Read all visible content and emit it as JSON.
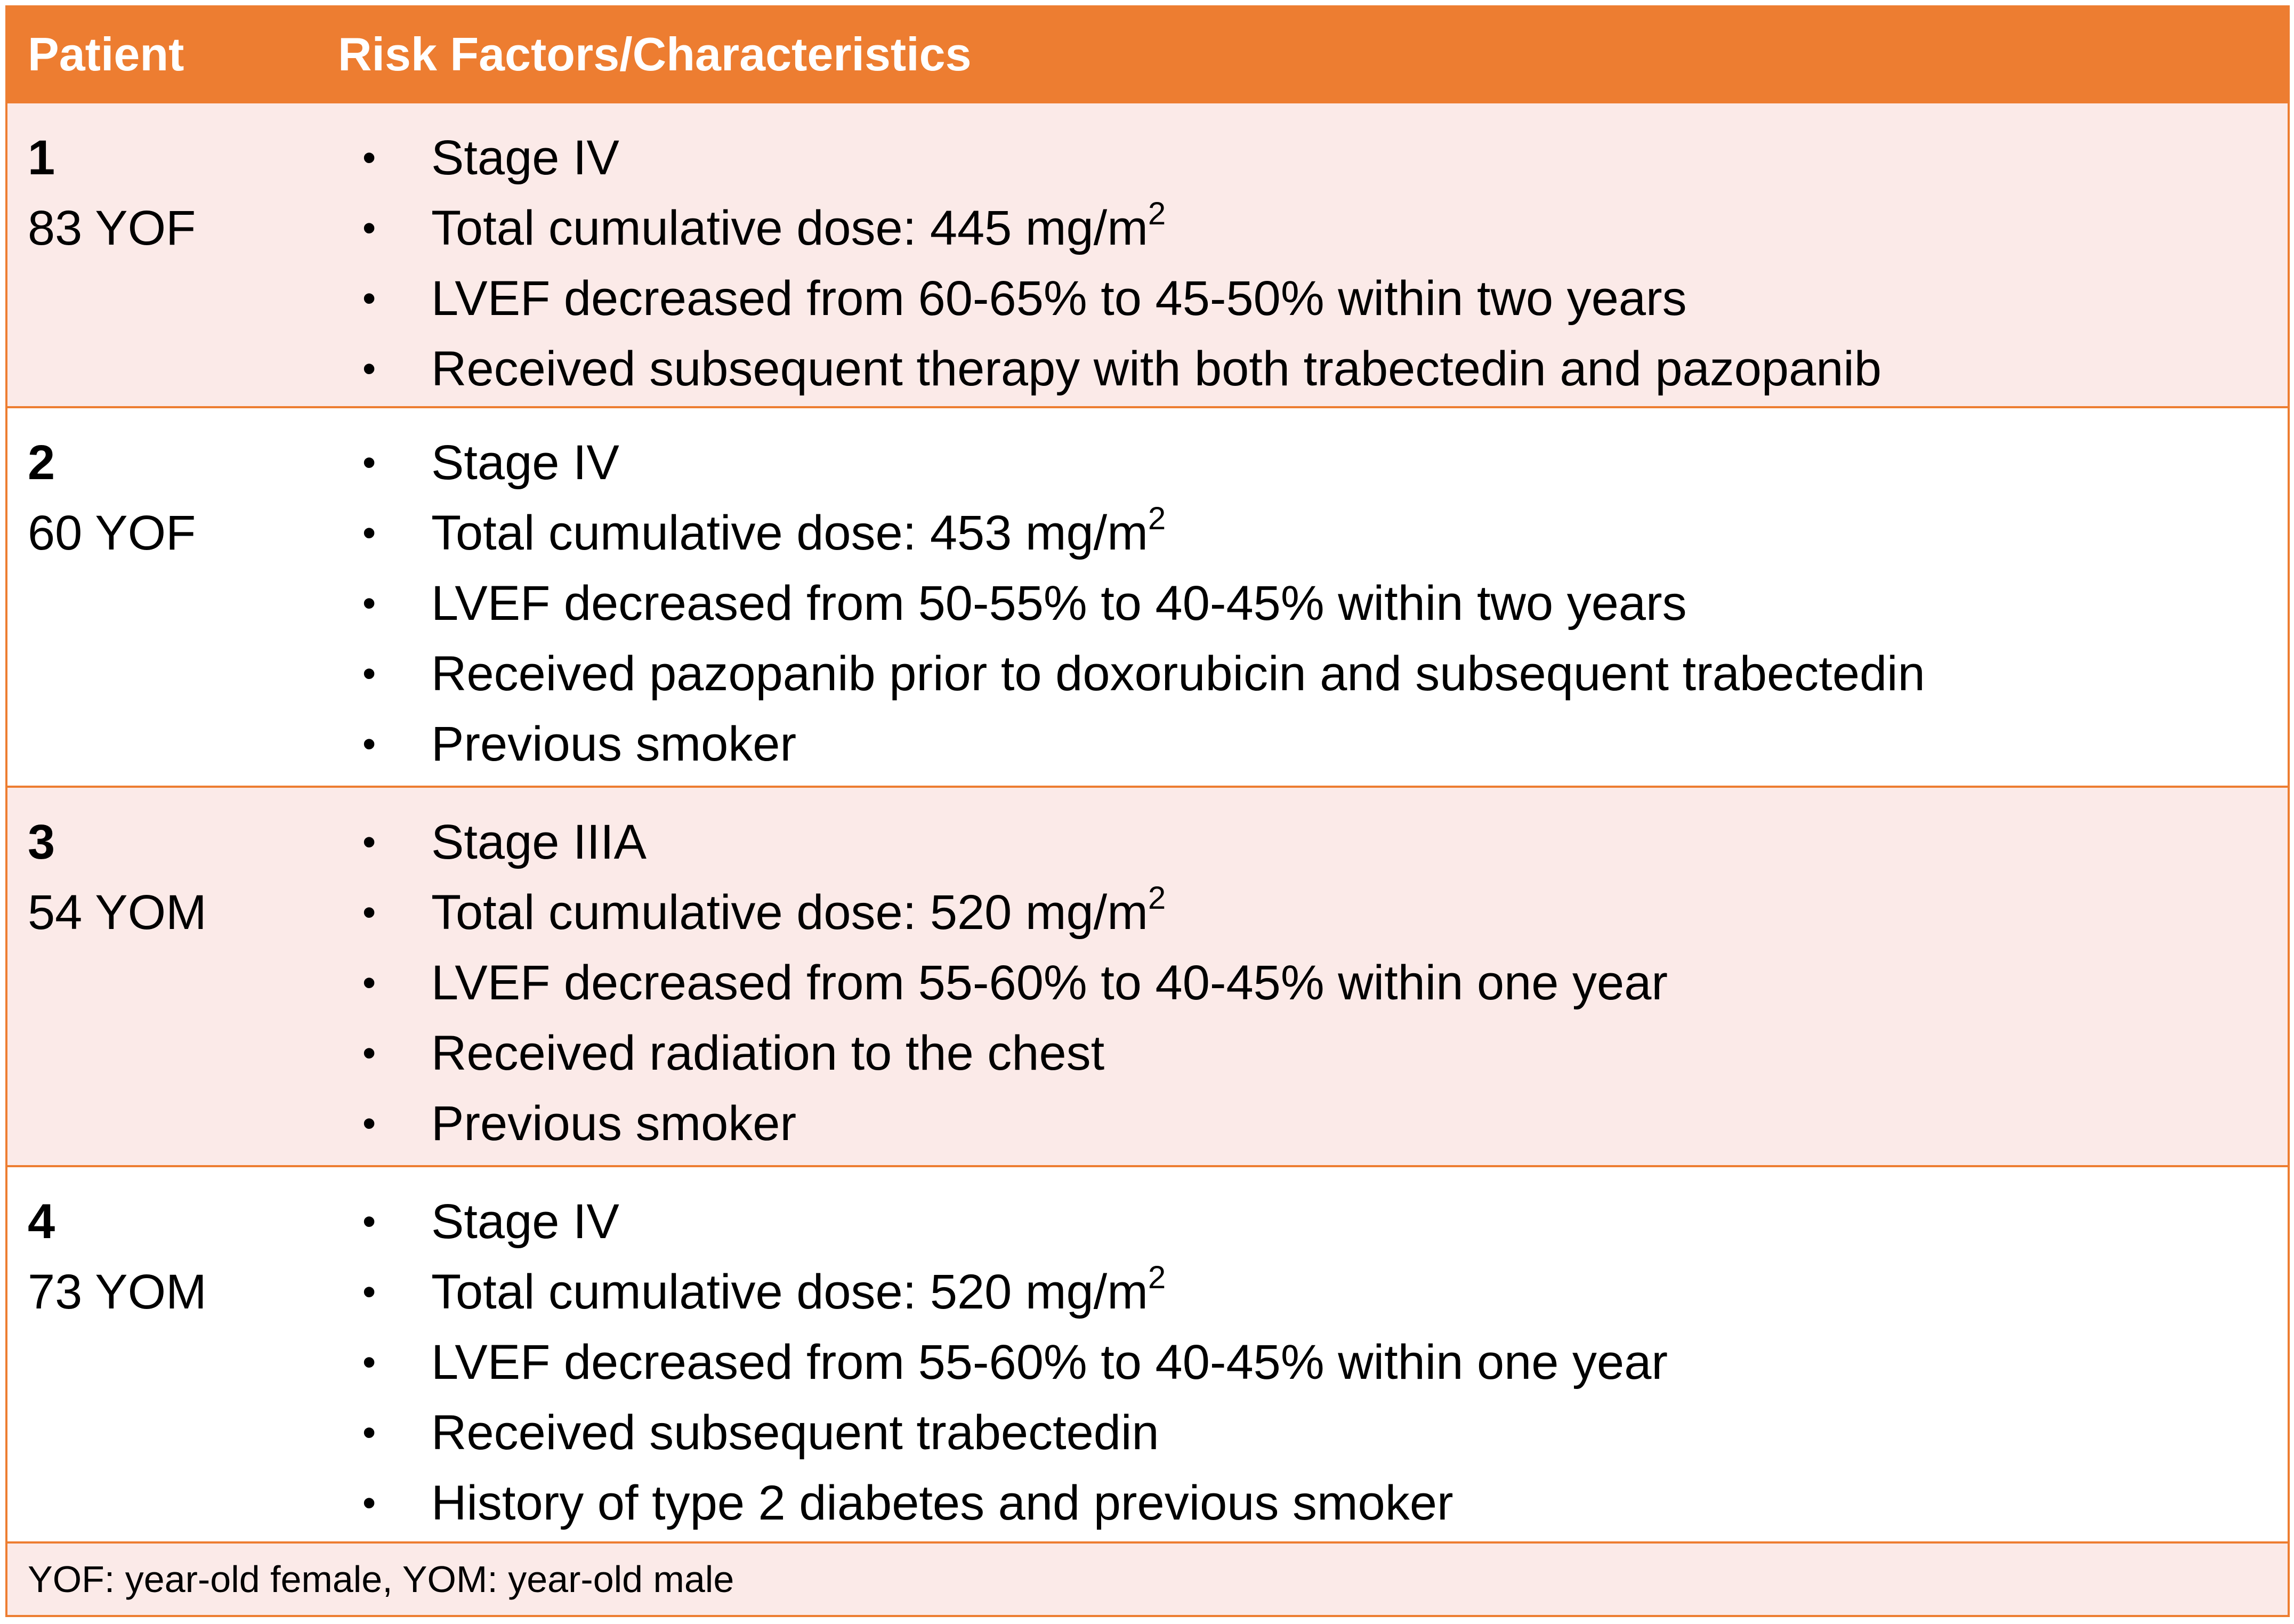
{
  "table": {
    "header": {
      "patient": "Patient",
      "risk": "Risk Factors/Characteristics"
    },
    "rows": [
      {
        "number": "1",
        "description": "83 YOF",
        "items": [
          {
            "text": "Stage IV",
            "sup": ""
          },
          {
            "text": "Total cumulative dose: 445 mg/m",
            "sup": "2"
          },
          {
            "text": "LVEF decreased from 60-65% to 45-50% within two years",
            "sup": ""
          },
          {
            "text": "Received subsequent therapy with both trabectedin and pazopanib",
            "sup": ""
          }
        ]
      },
      {
        "number": "2",
        "description": "60 YOF",
        "items": [
          {
            "text": "Stage IV",
            "sup": ""
          },
          {
            "text": "Total cumulative dose: 453 mg/m",
            "sup": "2"
          },
          {
            "text": "LVEF decreased from 50-55% to 40-45% within two years",
            "sup": ""
          },
          {
            "text": "Received pazopanib prior to doxorubicin and subsequent trabectedin",
            "sup": ""
          },
          {
            "text": "Previous smoker",
            "sup": ""
          }
        ]
      },
      {
        "number": "3",
        "description": "54 YOM",
        "items": [
          {
            "text": "Stage IIIA",
            "sup": ""
          },
          {
            "text": "Total cumulative dose: 520 mg/m",
            "sup": "2"
          },
          {
            "text": "LVEF decreased from 55-60% to 40-45% within one year",
            "sup": ""
          },
          {
            "text": "Received radiation to the chest",
            "sup": ""
          },
          {
            "text": "Previous smoker",
            "sup": ""
          }
        ]
      },
      {
        "number": "4",
        "description": "73 YOM",
        "items": [
          {
            "text": "Stage IV",
            "sup": ""
          },
          {
            "text": "Total cumulative dose: 520 mg/m",
            "sup": "2"
          },
          {
            "text": "LVEF decreased from 55-60% to 40-45% within one year",
            "sup": ""
          },
          {
            "text": "Received subsequent trabectedin",
            "sup": ""
          },
          {
            "text": "History of type 2 diabetes and previous smoker",
            "sup": ""
          }
        ]
      }
    ],
    "footnote": "YOF: year-old female, YOM: year-old male",
    "bullet_char": "•"
  },
  "colors": {
    "header_bg": "#ED7D31",
    "shaded_row_bg": "#FBEAE8",
    "border": "#ED7D31"
  }
}
